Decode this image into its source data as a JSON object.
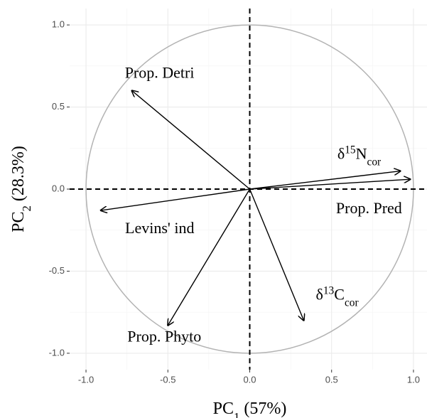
{
  "chart_data": {
    "type": "pca-biplot",
    "x_label": [
      {
        "text": "PC"
      },
      {
        "text": "1",
        "shift": "sub"
      },
      {
        "text": " (57%)"
      }
    ],
    "y_label": [
      {
        "text": "PC"
      },
      {
        "text": "2",
        "shift": "sub"
      },
      {
        "text": " (28.3%)"
      }
    ],
    "xlim": [
      -1.1,
      1.1
    ],
    "ylim": [
      -1.1,
      1.1
    ],
    "xticks": [
      {
        "value": -1.0,
        "label": "-1.0"
      },
      -0.5,
      {
        "value": 0.0,
        "label": "0.0"
      },
      0.5,
      {
        "value": 1.0,
        "label": "1.0"
      }
    ],
    "yticks": [
      {
        "value": -1.0,
        "label": "-1.0"
      },
      -0.5,
      {
        "value": 0.0,
        "label": "0.0"
      },
      0.5,
      {
        "value": 1.0,
        "label": "1.0"
      }
    ],
    "grid": true,
    "minor_grid": true,
    "circle_radius": 1,
    "circle_color": "#b3b3b3",
    "reference_lines": {
      "x": 0,
      "y": 0
    },
    "arrow_color": "#000000",
    "arrows": [
      {
        "label": [
          {
            "text": "Prop. Detri"
          }
        ],
        "x": -0.72,
        "y": 0.6
      },
      {
        "label": [
          {
            "text": "δ"
          },
          {
            "text": "15",
            "shift": "super"
          },
          {
            "text": "N"
          },
          {
            "text": "cor",
            "shift": "sub"
          }
        ],
        "x": 0.92,
        "y": 0.11
      },
      {
        "label": [
          {
            "text": "Prop. Pred"
          }
        ],
        "x": 0.98,
        "y": 0.06
      },
      {
        "label": [
          {
            "text": "Levins' ind"
          }
        ],
        "x": -0.91,
        "y": -0.13
      },
      {
        "label": [
          {
            "text": "Prop. Phyto"
          }
        ],
        "x": -0.5,
        "y": -0.83
      },
      {
        "label": [
          {
            "text": "δ"
          },
          {
            "text": "13",
            "shift": "super"
          },
          {
            "text": "C"
          },
          {
            "text": "cor",
            "shift": "sub"
          }
        ],
        "x": 0.33,
        "y": -0.8
      }
    ]
  }
}
